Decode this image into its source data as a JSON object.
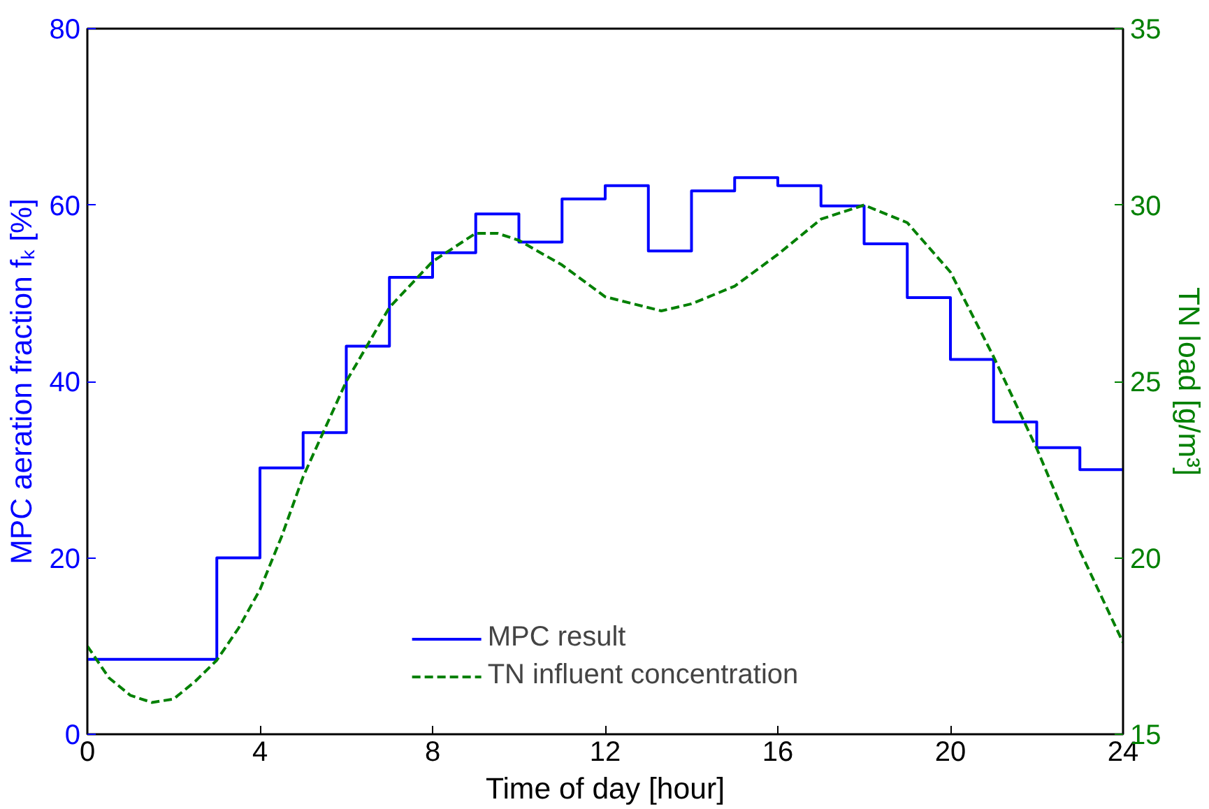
{
  "chart_data": {
    "type": "step",
    "xlabel": "Time of day [hour]",
    "ylabel": "MPC aeration fraction fₖ [%]",
    "y2label": "TN load [g/m³]",
    "xlim": [
      0,
      24
    ],
    "xticks": [
      0,
      4,
      8,
      12,
      16,
      20,
      24
    ],
    "ylim": [
      0,
      80
    ],
    "yticks": [
      0,
      20,
      40,
      60,
      80
    ],
    "y2lim": [
      15,
      35
    ],
    "y2ticks": [
      15,
      20,
      25,
      30,
      35
    ],
    "grid": false,
    "legend": "bottom",
    "series": [
      {
        "name": "MPC result",
        "color": "#0000ff",
        "line_style": "solid",
        "x": [
          0,
          3,
          4,
          5,
          6,
          7,
          8,
          9,
          10,
          11,
          12,
          13,
          14,
          15,
          16,
          17,
          18,
          19,
          20,
          21,
          22,
          23,
          24
        ],
        "values": [
          8.5,
          20,
          30.2,
          34.2,
          44,
          51.8,
          54.6,
          59,
          55.8,
          60.7,
          62.2,
          54.8,
          61.6,
          63.1,
          62.2,
          59.9,
          55.6,
          49.5,
          42.5,
          35.4,
          32.5,
          30,
          30
        ]
      },
      {
        "name": "TN influent concentration",
        "color": "#008000",
        "type": "line",
        "line_style": "dashed",
        "axis": "y2",
        "x": [
          0,
          0.5,
          1,
          1.5,
          2,
          2.5,
          3,
          3.5,
          4,
          4.5,
          5,
          6,
          7,
          8,
          9,
          9.5,
          10,
          11,
          12,
          13.3,
          14,
          15,
          16,
          17,
          18,
          19,
          20,
          21,
          22,
          23,
          24
        ],
        "values": [
          17.5,
          16.6,
          16.1,
          15.9,
          16.0,
          16.5,
          17.1,
          18.0,
          19.1,
          20.6,
          22.3,
          25.0,
          27.1,
          28.4,
          29.2,
          29.2,
          29.0,
          28.3,
          27.4,
          27.0,
          27.2,
          27.7,
          28.6,
          29.6,
          30.0,
          29.5,
          28.1,
          25.7,
          23.1,
          20.2,
          17.6
        ]
      }
    ]
  }
}
